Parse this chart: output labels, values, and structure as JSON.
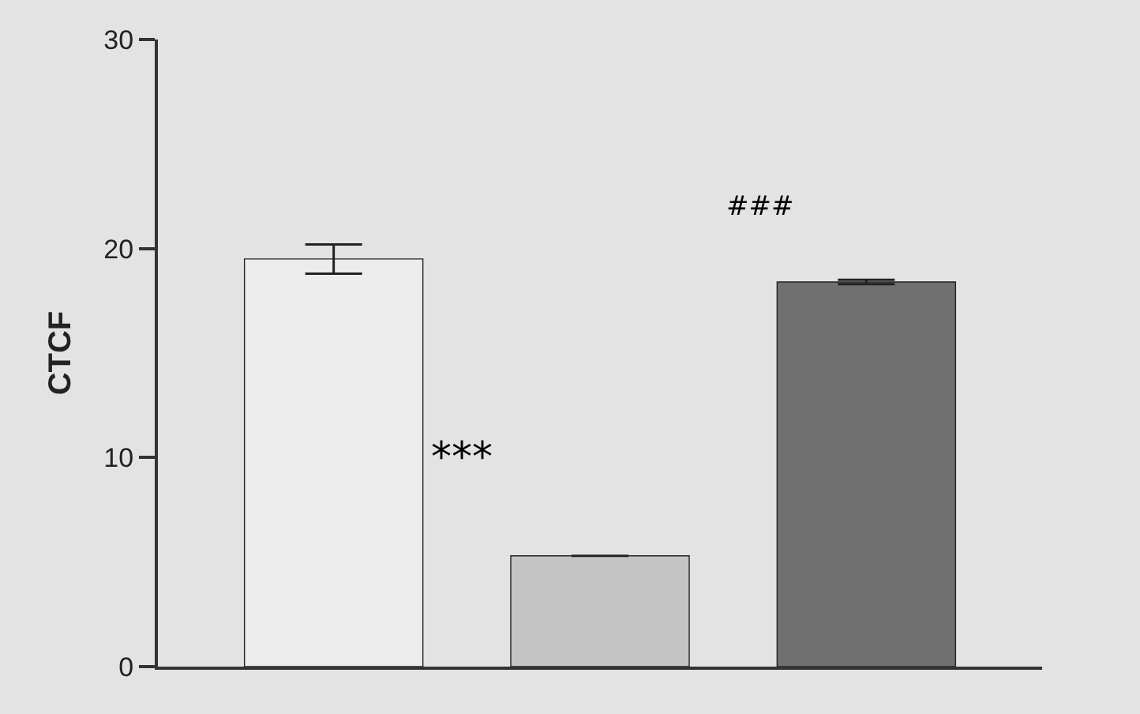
{
  "chart_data": {
    "type": "bar",
    "ylabel": "CTCF",
    "categories": [
      null,
      null,
      null
    ],
    "values": [
      19.5,
      5.3,
      18.4
    ],
    "errors": [
      0.7,
      null,
      0.1
    ],
    "colors": [
      "#ececec",
      "#c4c4c4",
      "#707070"
    ],
    "ylim": [
      0,
      30
    ],
    "yticks": [
      0,
      10,
      20,
      30
    ],
    "annotations": [
      "***",
      "###"
    ],
    "grid": false,
    "legend": false
  }
}
